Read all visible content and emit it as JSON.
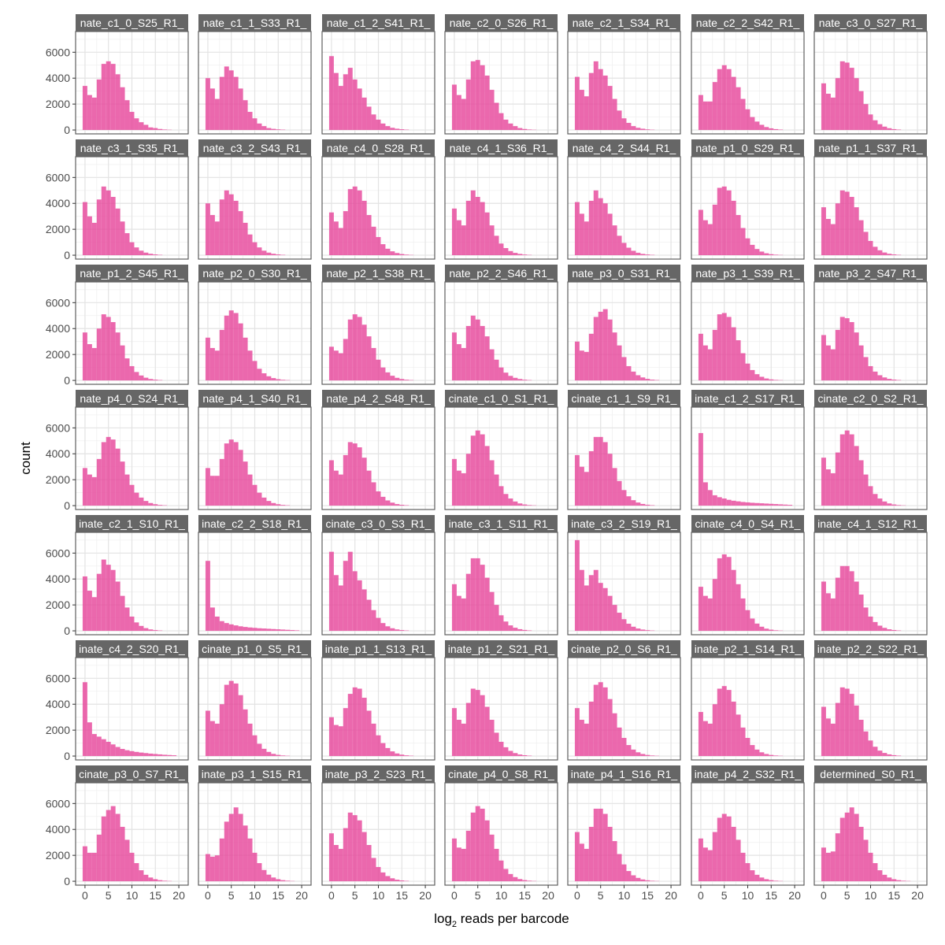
{
  "chart_data": {
    "type": "histogram-facet-grid",
    "xlabel": "log",
    "xlabel_subscript": "2",
    "xlabel_suffix": " reads per barcode",
    "ylabel": "count",
    "xlim": [
      -2,
      22
    ],
    "ylim": [
      -300,
      7600
    ],
    "x_ticks": [
      0,
      5,
      10,
      15,
      20
    ],
    "y_ticks": [
      0,
      2000,
      4000,
      6000
    ],
    "bin_width": 1,
    "bin_start": 0,
    "bar_color": "#e7479b",
    "strip_color": "#666666",
    "grid": true,
    "panels": [
      {
        "label": "nate_c1_0_S25_R1_",
        "values": [
          3400,
          2700,
          2500,
          3900,
          5100,
          5300,
          5100,
          4300,
          3300,
          2300,
          1400,
          900,
          600,
          400,
          200,
          150,
          80,
          40,
          20,
          10
        ]
      },
      {
        "label": "nate_c1_1_S33_R1_",
        "values": [
          4000,
          3200,
          2400,
          4100,
          4900,
          4600,
          4100,
          3200,
          2300,
          1400,
          900,
          500,
          300,
          150,
          90,
          50,
          30,
          15,
          10,
          5
        ]
      },
      {
        "label": "nate_c1_2_S41_R1_",
        "values": [
          5700,
          4400,
          3400,
          4300,
          4800,
          3900,
          3200,
          2500,
          1800,
          1200,
          800,
          500,
          300,
          170,
          100,
          60,
          30,
          15,
          8,
          4
        ]
      },
      {
        "label": "nate_c2_0_S26_R1_",
        "values": [
          3500,
          2700,
          2400,
          3900,
          5300,
          5400,
          5000,
          4200,
          3100,
          2100,
          1300,
          800,
          500,
          300,
          150,
          80,
          40,
          20,
          10,
          5
        ]
      },
      {
        "label": "nate_c2_1_S34_R1_",
        "values": [
          4100,
          3100,
          2600,
          4400,
          5300,
          4700,
          4200,
          3400,
          2400,
          1500,
          900,
          550,
          300,
          170,
          100,
          50,
          25,
          15,
          8,
          4
        ]
      },
      {
        "label": "nate_c2_2_S42_R1_",
        "values": [
          2700,
          2200,
          2200,
          3700,
          4700,
          5000,
          4700,
          4100,
          3300,
          2400,
          1600,
          1000,
          650,
          400,
          230,
          130,
          70,
          35,
          15,
          8
        ]
      },
      {
        "label": "nate_c3_0_S27_R1_",
        "values": [
          3600,
          2800,
          2500,
          4000,
          5300,
          5200,
          4800,
          4000,
          3000,
          2000,
          1200,
          750,
          450,
          260,
          140,
          70,
          35,
          18,
          9,
          4
        ]
      },
      {
        "label": "nate_c3_1_S35_R1_",
        "values": [
          4100,
          3000,
          2500,
          4300,
          5300,
          5000,
          4500,
          3600,
          2600,
          1700,
          1000,
          600,
          350,
          200,
          110,
          60,
          30,
          15,
          8,
          4
        ]
      },
      {
        "label": "nate_c3_2_S43_R1_",
        "values": [
          4000,
          3100,
          2600,
          4300,
          5000,
          4700,
          4200,
          3400,
          2500,
          1600,
          1000,
          600,
          350,
          200,
          110,
          60,
          30,
          15,
          8,
          4
        ]
      },
      {
        "label": "nate_c4_0_S28_R1_",
        "values": [
          3300,
          2600,
          2100,
          3400,
          5100,
          5300,
          5000,
          4200,
          3100,
          2200,
          1400,
          850,
          500,
          300,
          170,
          90,
          45,
          22,
          10,
          5
        ]
      },
      {
        "label": "nate_c4_1_S36_R1_",
        "values": [
          3600,
          2700,
          2300,
          4200,
          5000,
          4500,
          4100,
          3300,
          2300,
          1500,
          900,
          550,
          320,
          180,
          100,
          50,
          25,
          12,
          6,
          3
        ]
      },
      {
        "label": "nate_c4_2_S44_R1_",
        "values": [
          4100,
          3200,
          2600,
          4200,
          5000,
          4400,
          4000,
          3200,
          2300,
          1500,
          950,
          580,
          340,
          190,
          100,
          55,
          28,
          14,
          7,
          3
        ]
      },
      {
        "label": "nate_p1_0_S29_R1_",
        "values": [
          3500,
          2700,
          2400,
          3900,
          5200,
          5300,
          5000,
          4200,
          3100,
          2100,
          1300,
          800,
          480,
          280,
          150,
          80,
          40,
          20,
          10,
          5
        ]
      },
      {
        "label": "nate_p1_1_S37_R1_",
        "values": [
          3700,
          2800,
          2400,
          4000,
          5000,
          4900,
          4500,
          3700,
          2700,
          1800,
          1100,
          650,
          380,
          210,
          110,
          60,
          30,
          15,
          8,
          4
        ]
      },
      {
        "label": "nate_p1_2_S45_R1_",
        "values": [
          3700,
          2800,
          2500,
          4000,
          5100,
          4900,
          4500,
          3700,
          2700,
          1700,
          1100,
          650,
          380,
          210,
          110,
          60,
          30,
          15,
          8,
          4
        ]
      },
      {
        "label": "nate_p2_0_S30_R1_",
        "values": [
          3300,
          2500,
          2300,
          3900,
          5000,
          5400,
          5200,
          4400,
          3300,
          2300,
          1500,
          900,
          550,
          320,
          180,
          95,
          48,
          24,
          12,
          6
        ]
      },
      {
        "label": "nate_p2_1_S38_R1_",
        "values": [
          2600,
          2300,
          2100,
          3200,
          4700,
          5100,
          4900,
          4300,
          3400,
          2500,
          1600,
          1000,
          620,
          360,
          200,
          110,
          55,
          28,
          14,
          7
        ]
      },
      {
        "label": "nate_p2_2_S46_R1_",
        "values": [
          3700,
          2800,
          2500,
          4200,
          5000,
          4700,
          4200,
          3400,
          2400,
          1600,
          1000,
          600,
          350,
          200,
          110,
          55,
          28,
          14,
          7,
          3
        ]
      },
      {
        "label": "nate_p3_0_S31_R1_",
        "values": [
          3000,
          2300,
          2200,
          3600,
          4900,
          5300,
          5500,
          4700,
          3700,
          2700,
          1800,
          1100,
          680,
          400,
          230,
          120,
          60,
          30,
          15,
          8
        ]
      },
      {
        "label": "nate_p3_1_S39_R1_",
        "values": [
          3600,
          2700,
          2400,
          3900,
          5100,
          5200,
          4900,
          4100,
          3100,
          2100,
          1300,
          800,
          480,
          280,
          150,
          80,
          40,
          20,
          10,
          5
        ]
      },
      {
        "label": "nate_p3_2_S47_R1_",
        "values": [
          3500,
          2700,
          2400,
          3900,
          4900,
          4800,
          4500,
          3700,
          2700,
          1800,
          1100,
          680,
          400,
          230,
          120,
          65,
          32,
          16,
          8,
          4
        ]
      },
      {
        "label": "nate_p4_0_S24_R1_",
        "values": [
          2900,
          2400,
          2200,
          3600,
          4900,
          5300,
          5100,
          4400,
          3400,
          2400,
          1600,
          1000,
          620,
          360,
          200,
          110,
          55,
          28,
          14,
          7
        ]
      },
      {
        "label": "nate_p4_1_S40_R1_",
        "values": [
          2900,
          2300,
          2300,
          3600,
          4800,
          5100,
          4900,
          4300,
          3400,
          2400,
          1600,
          1000,
          620,
          360,
          200,
          110,
          55,
          28,
          14,
          7
        ]
      },
      {
        "label": "nate_p4_2_S48_R1_",
        "values": [
          3500,
          2700,
          2400,
          3900,
          4900,
          4800,
          4500,
          3700,
          2700,
          1800,
          1100,
          680,
          400,
          230,
          120,
          65,
          32,
          16,
          8,
          4
        ]
      },
      {
        "label": "cinate_c1_0_S1_R1_",
        "values": [
          3600,
          2700,
          2500,
          4000,
          5400,
          5800,
          5500,
          4600,
          3500,
          2400,
          1500,
          900,
          550,
          320,
          170,
          90,
          45,
          22,
          11,
          5
        ]
      },
      {
        "label": "cinate_c1_1_S9_R1_",
        "values": [
          3900,
          3000,
          2600,
          4200,
          5300,
          5300,
          4900,
          4000,
          2900,
          1900,
          1200,
          720,
          420,
          240,
          130,
          70,
          35,
          18,
          9,
          4
        ]
      },
      {
        "label": "inate_c1_2_S17_R1_",
        "values": [
          5600,
          1800,
          1200,
          800,
          650,
          550,
          450,
          380,
          330,
          280,
          250,
          220,
          200,
          180,
          160,
          140,
          120,
          100,
          80,
          60
        ]
      },
      {
        "label": "cinate_c2_0_S2_R1_",
        "values": [
          3700,
          2800,
          2500,
          4100,
          5500,
          5800,
          5500,
          4600,
          3500,
          2400,
          1500,
          900,
          550,
          320,
          170,
          90,
          45,
          22,
          11,
          5
        ]
      },
      {
        "label": "inate_c2_1_S10_R1_",
        "values": [
          4200,
          3100,
          2600,
          4400,
          5500,
          5100,
          4700,
          3800,
          2700,
          1800,
          1100,
          650,
          380,
          210,
          110,
          60,
          30,
          15,
          8,
          4
        ]
      },
      {
        "label": "inate_c2_2_S18_R1_",
        "values": [
          5400,
          1800,
          1100,
          750,
          600,
          500,
          420,
          350,
          300,
          260,
          230,
          200,
          180,
          160,
          140,
          120,
          100,
          80,
          60,
          40
        ]
      },
      {
        "label": "cinate_c3_0_S3_R1_",
        "values": [
          6100,
          4300,
          3500,
          5400,
          6100,
          4600,
          3900,
          3200,
          2400,
          1600,
          1000,
          600,
          350,
          200,
          110,
          60,
          30,
          15,
          8,
          4
        ]
      },
      {
        "label": "inate_c3_1_S11_R1_",
        "values": [
          3600,
          2700,
          2500,
          4400,
          5600,
          5600,
          5100,
          4100,
          3000,
          2000,
          1200,
          720,
          420,
          240,
          130,
          70,
          35,
          18,
          9,
          4
        ]
      },
      {
        "label": "inate_c3_2_S19_R1_",
        "values": [
          7000,
          4700,
          3500,
          4300,
          4700,
          3700,
          3300,
          2700,
          2000,
          1400,
          900,
          550,
          320,
          180,
          100,
          55,
          28,
          14,
          7,
          3
        ]
      },
      {
        "label": "cinate_c4_0_S4_R1_",
        "values": [
          3400,
          2700,
          2500,
          4000,
          5600,
          5900,
          5700,
          4700,
          3600,
          2500,
          1600,
          950,
          560,
          320,
          170,
          90,
          45,
          22,
          11,
          5
        ]
      },
      {
        "label": "inate_c4_1_S12_R1_",
        "values": [
          3800,
          2900,
          2500,
          4100,
          5000,
          5000,
          4600,
          3800,
          2800,
          1800,
          1100,
          680,
          400,
          230,
          120,
          65,
          32,
          16,
          8,
          4
        ]
      },
      {
        "label": "inate_c4_2_S20_R1_",
        "values": [
          5700,
          2600,
          1700,
          1500,
          1300,
          1100,
          900,
          700,
          550,
          450,
          380,
          320,
          270,
          230,
          190,
          160,
          130,
          100,
          80,
          60
        ]
      },
      {
        "label": "cinate_p1_0_S5_R1_",
        "values": [
          3500,
          2700,
          2500,
          4000,
          5500,
          5800,
          5600,
          4700,
          3600,
          2500,
          1600,
          950,
          560,
          320,
          170,
          90,
          45,
          22,
          11,
          5
        ]
      },
      {
        "label": "inate_p1_1_S13_R1_",
        "values": [
          3000,
          2400,
          2300,
          3700,
          4800,
          5300,
          5200,
          4500,
          3500,
          2500,
          1600,
          1000,
          620,
          360,
          200,
          110,
          55,
          28,
          14,
          7
        ]
      },
      {
        "label": "inate_p1_2_S21_R1_",
        "values": [
          3700,
          2800,
          2500,
          4100,
          5200,
          5100,
          4700,
          3800,
          2800,
          1800,
          1100,
          680,
          400,
          230,
          120,
          65,
          32,
          16,
          8,
          4
        ]
      },
      {
        "label": "cinate_p2_0_S6_R1_",
        "values": [
          3700,
          2800,
          2500,
          4200,
          5500,
          5700,
          5300,
          4400,
          3300,
          2200,
          1400,
          850,
          500,
          290,
          160,
          85,
          42,
          21,
          10,
          5
        ]
      },
      {
        "label": "inate_p2_1_S14_R1_",
        "values": [
          3400,
          2700,
          2500,
          4000,
          5200,
          5400,
          5100,
          4200,
          3200,
          2200,
          1400,
          850,
          500,
          290,
          160,
          85,
          42,
          21,
          10,
          5
        ]
      },
      {
        "label": "inate_p2_2_S22_R1_",
        "values": [
          3800,
          2900,
          2500,
          4100,
          5300,
          5200,
          4800,
          3900,
          2800,
          1900,
          1200,
          720,
          420,
          240,
          130,
          70,
          35,
          18,
          9,
          4
        ]
      },
      {
        "label": "cinate_p3_0_S7_R1_",
        "values": [
          2700,
          2200,
          2200,
          3600,
          5000,
          5500,
          5800,
          5200,
          4200,
          3200,
          2200,
          1400,
          850,
          500,
          290,
          160,
          85,
          42,
          21,
          10
        ]
      },
      {
        "label": "inate_p3_1_S15_R1_",
        "values": [
          2100,
          1900,
          2000,
          3300,
          4600,
          5200,
          5700,
          5200,
          4300,
          3300,
          2200,
          1400,
          870,
          510,
          290,
          160,
          85,
          42,
          21,
          10
        ]
      },
      {
        "label": "inate_p3_2_S23_R1_",
        "values": [
          3700,
          2800,
          2500,
          4100,
          5300,
          5100,
          4700,
          3800,
          2800,
          1800,
          1100,
          680,
          400,
          230,
          120,
          65,
          32,
          16,
          8,
          4
        ]
      },
      {
        "label": "cinate_p4_0_S8_R1_",
        "values": [
          3300,
          2600,
          2500,
          3900,
          5300,
          5800,
          5600,
          4700,
          3600,
          2500,
          1600,
          950,
          560,
          320,
          170,
          90,
          45,
          22,
          11,
          5
        ]
      },
      {
        "label": "inate_p4_1_S16_R1_",
        "values": [
          3800,
          2900,
          2500,
          4200,
          5600,
          5600,
          5200,
          4200,
          3100,
          2100,
          1300,
          790,
          460,
          260,
          140,
          75,
          38,
          19,
          9,
          4
        ]
      },
      {
        "label": "inate_p4_2_S32_R1_",
        "values": [
          3300,
          2600,
          2400,
          3800,
          4900,
          5200,
          5000,
          4200,
          3200,
          2200,
          1400,
          850,
          500,
          290,
          160,
          85,
          42,
          21,
          10,
          5
        ]
      },
      {
        "label": "determined_S0_R1_",
        "values": [
          2600,
          2200,
          2300,
          3700,
          4900,
          5300,
          5700,
          5200,
          4200,
          3200,
          2200,
          1400,
          850,
          500,
          290,
          160,
          85,
          42,
          21,
          10
        ]
      }
    ]
  }
}
